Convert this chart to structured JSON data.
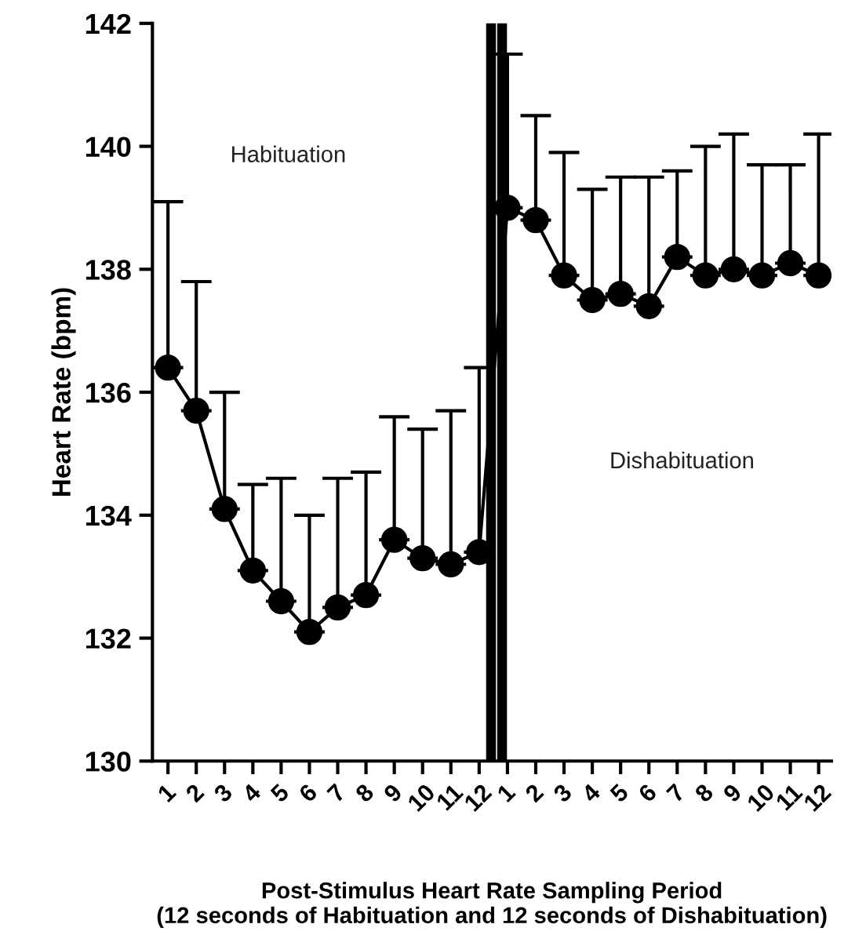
{
  "chart_data": {
    "type": "line",
    "xlabel": "Post-Stimulus Heart Rate Sampling Period\n(12 seconds of Habituation and 12 seconds of Dishabituation)",
    "ylabel": "Heart Rate (bpm)",
    "categories": [
      "1",
      "2",
      "3",
      "4",
      "5",
      "6",
      "7",
      "8",
      "9",
      "10",
      "11",
      "12",
      "1",
      "2",
      "3",
      "4",
      "5",
      "6",
      "7",
      "8",
      "9",
      "10",
      "11",
      "12"
    ],
    "ylim": [
      130,
      142
    ],
    "yticks": [
      130,
      132,
      134,
      136,
      138,
      140,
      142
    ],
    "series": [
      {
        "color": "#000000",
        "values": [
          136.4,
          135.7,
          134.1,
          133.1,
          132.6,
          132.1,
          132.5,
          132.7,
          133.6,
          133.3,
          133.2,
          133.4,
          139.0,
          138.8,
          137.9,
          137.5,
          137.6,
          137.4,
          138.2,
          137.9,
          138.0,
          137.9,
          138.1,
          137.9
        ],
        "errors": [
          [
            136.4,
            139.1
          ],
          [
            135.7,
            137.8
          ],
          [
            134.1,
            136.0
          ],
          [
            133.1,
            134.5
          ],
          [
            132.6,
            134.6
          ],
          [
            132.1,
            134.0
          ],
          [
            132.5,
            134.6
          ],
          [
            132.7,
            134.7
          ],
          [
            133.6,
            135.6
          ],
          [
            133.3,
            135.4
          ],
          [
            133.2,
            135.7
          ],
          [
            133.4,
            136.4
          ],
          [
            139.0,
            141.5
          ],
          [
            138.8,
            140.5
          ],
          [
            137.9,
            139.9
          ],
          [
            137.5,
            139.3
          ],
          [
            137.6,
            139.5
          ],
          [
            137.4,
            139.5
          ],
          [
            138.2,
            139.6
          ],
          [
            137.9,
            140.0
          ],
          [
            138.0,
            140.2
          ],
          [
            137.9,
            139.7
          ],
          [
            138.1,
            139.7
          ],
          [
            137.9,
            140.2
          ]
        ]
      }
    ],
    "marker": "circle",
    "line_style": "solid",
    "grid": false,
    "legend": false,
    "annotations": [
      "Habituation",
      "Dishabituation"
    ]
  }
}
